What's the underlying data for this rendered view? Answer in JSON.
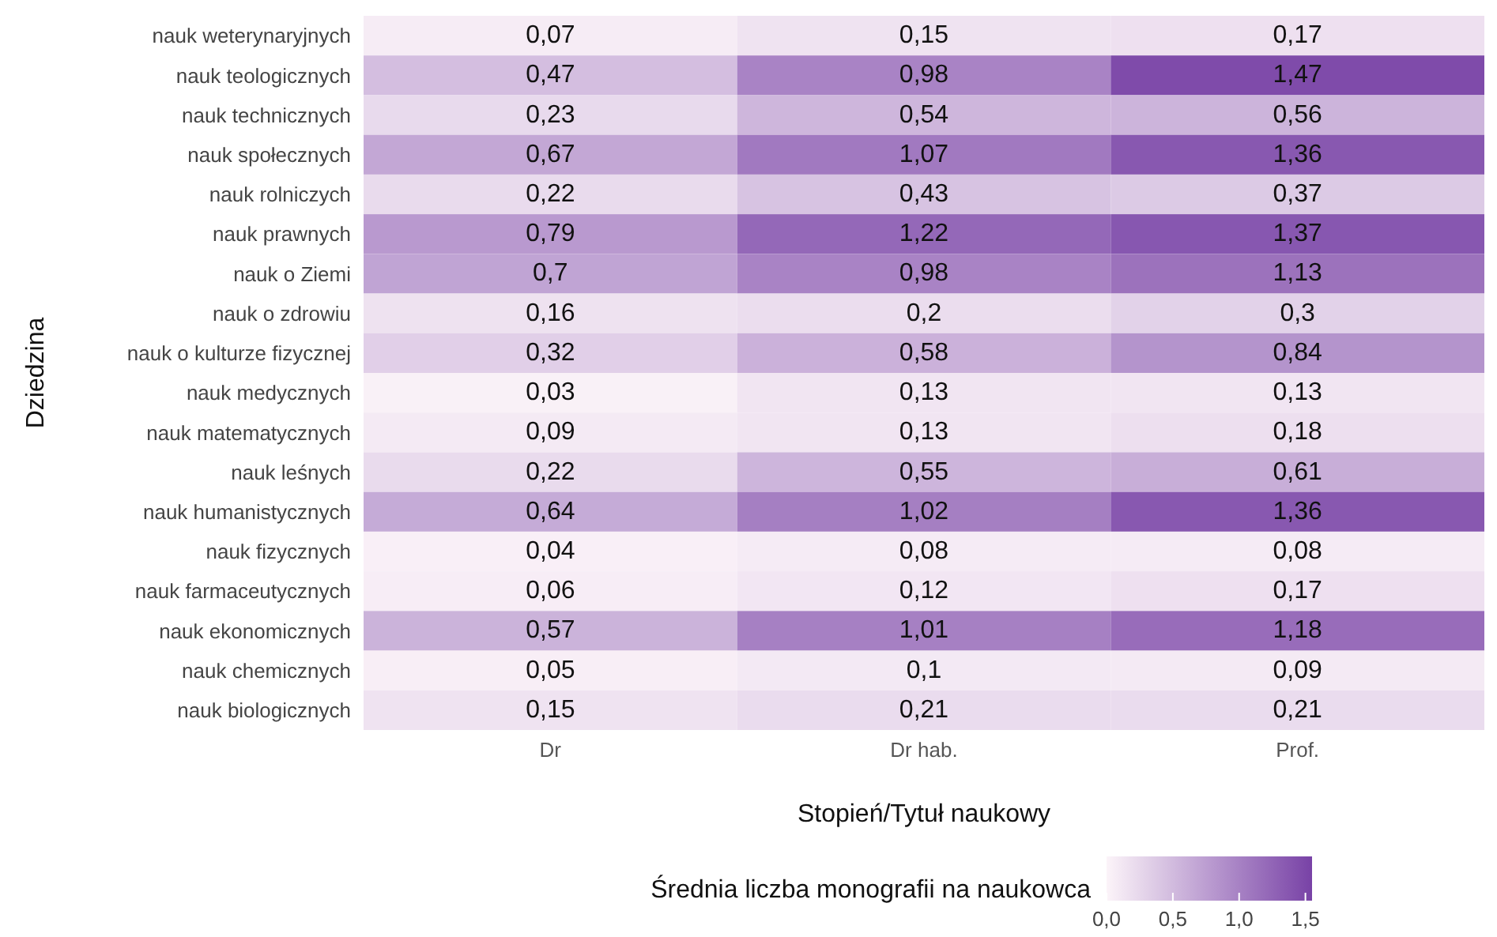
{
  "chart_data": {
    "type": "heatmap",
    "xlabel": "Stopień/Tytuł naukowy",
    "ylabel": "Dziedzina",
    "clabel": "Średnia liczba monografii na naukowca",
    "categories": [
      "Dr",
      "Dr hab.",
      "Prof."
    ],
    "y_categories": [
      "nauk weterynaryjnych",
      "nauk teologicznych",
      "nauk technicznych",
      "nauk społecznych",
      "nauk rolniczych",
      "nauk prawnych",
      "nauk o Ziemi",
      "nauk o zdrowiu",
      "nauk o kulturze fizycznej",
      "nauk medycznych",
      "nauk matematycznych",
      "nauk leśnych",
      "nauk humanistycznych",
      "nauk fizycznych",
      "nauk farmaceutycznych",
      "nauk ekonomicznych",
      "nauk chemicznych",
      "nauk biologicznych"
    ],
    "cells": [
      [
        0.07,
        0.15,
        0.17
      ],
      [
        0.47,
        0.98,
        1.47
      ],
      [
        0.23,
        0.54,
        0.56
      ],
      [
        0.67,
        1.07,
        1.36
      ],
      [
        0.22,
        0.43,
        0.37
      ],
      [
        0.79,
        1.22,
        1.37
      ],
      [
        0.7,
        0.98,
        1.13
      ],
      [
        0.16,
        0.2,
        0.3
      ],
      [
        0.32,
        0.58,
        0.84
      ],
      [
        0.03,
        0.13,
        0.13
      ],
      [
        0.09,
        0.13,
        0.18
      ],
      [
        0.22,
        0.55,
        0.61
      ],
      [
        0.64,
        1.02,
        1.36
      ],
      [
        0.04,
        0.08,
        0.08
      ],
      [
        0.06,
        0.12,
        0.17
      ],
      [
        0.57,
        1.01,
        1.18
      ],
      [
        0.05,
        0.1,
        0.09
      ],
      [
        0.15,
        0.21,
        0.21
      ]
    ],
    "cell_labels": [
      [
        "0,07",
        "0,15",
        "0,17"
      ],
      [
        "0,47",
        "0,98",
        "1,47"
      ],
      [
        "0,23",
        "0,54",
        "0,56"
      ],
      [
        "0,67",
        "1,07",
        "1,36"
      ],
      [
        "0,22",
        "0,43",
        "0,37"
      ],
      [
        "0,79",
        "1,22",
        "1,37"
      ],
      [
        "0,7",
        "0,98",
        "1,13"
      ],
      [
        "0,16",
        "0,2",
        "0,3"
      ],
      [
        "0,32",
        "0,58",
        "0,84"
      ],
      [
        "0,03",
        "0,13",
        "0,13"
      ],
      [
        "0,09",
        "0,13",
        "0,18"
      ],
      [
        "0,22",
        "0,55",
        "0,61"
      ],
      [
        "0,64",
        "1,02",
        "1,36"
      ],
      [
        "0,04",
        "0,08",
        "0,08"
      ],
      [
        "0,06",
        "0,12",
        "0,17"
      ],
      [
        "0,57",
        "1,01",
        "1,18"
      ],
      [
        "0,05",
        "0,1",
        "0,09"
      ],
      [
        "0,15",
        "0,21",
        "0,21"
      ]
    ],
    "clim": [
      0,
      1.55
    ],
    "cticks": [
      {
        "value": 0,
        "label": "0,0"
      },
      {
        "value": 0.5,
        "label": "0,5"
      },
      {
        "value": 1,
        "label": "1,0"
      },
      {
        "value": 1.5,
        "label": "1,5"
      }
    ]
  }
}
